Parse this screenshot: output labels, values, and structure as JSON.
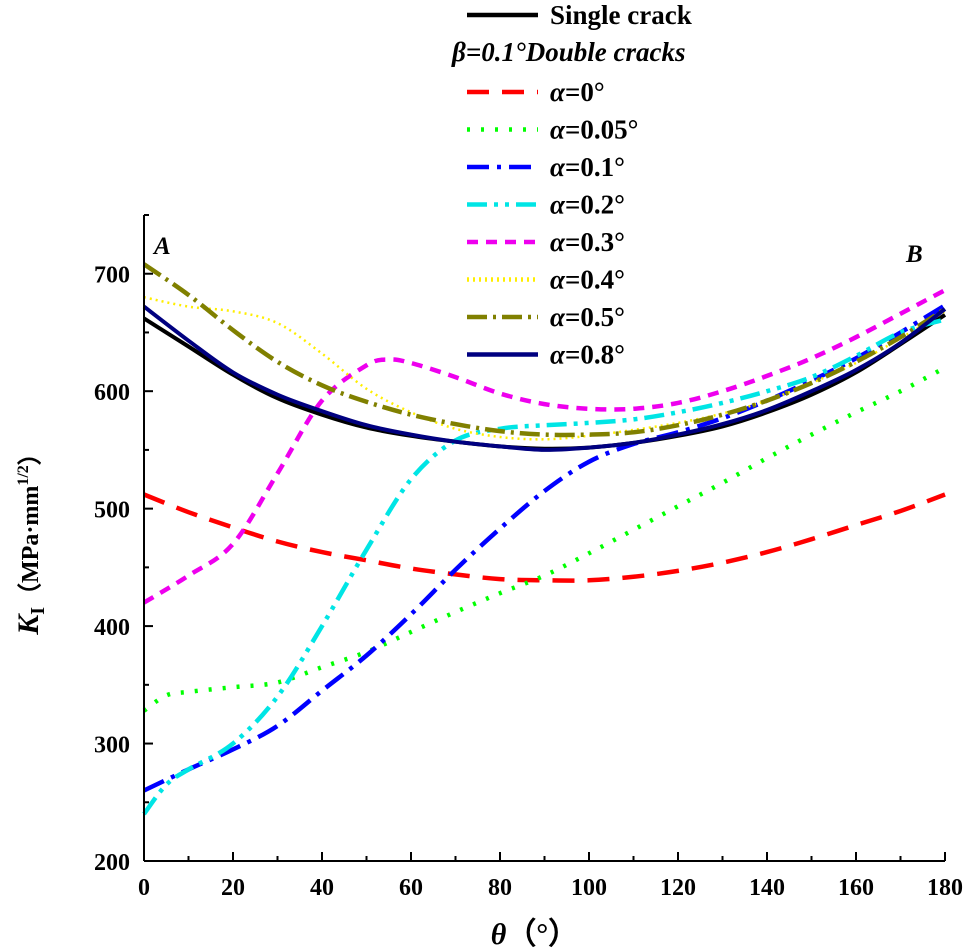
{
  "chart_data": {
    "type": "line",
    "xlabel_symbol": "θ",
    "xlabel_unit": "（°）",
    "ylabel_symbol": "K",
    "ylabel_subscript": "I",
    "ylabel_unit": "（MPa·mm",
    "ylabel_unit_sup": "1/2",
    "ylabel_unit_close": "）",
    "xlim": [
      0,
      180
    ],
    "ylim": [
      200,
      750
    ],
    "xticks": [
      0,
      20,
      40,
      60,
      80,
      100,
      120,
      140,
      160,
      180
    ],
    "yticks": [
      200,
      300,
      400,
      500,
      600,
      700
    ],
    "annotations": [
      {
        "text": "A",
        "at": "top-left"
      },
      {
        "text": "B",
        "at": "top-right"
      }
    ],
    "legend_header": "β=0.1°Double cracks",
    "legend_position": "top-right",
    "series": [
      {
        "name": "Single crack",
        "label": "Single crack",
        "color": "#000000",
        "dash": "solid",
        "x": [
          0,
          10,
          20,
          30,
          40,
          50,
          60,
          70,
          80,
          90,
          100,
          110,
          120,
          130,
          140,
          150,
          160,
          170,
          180
        ],
        "y": [
          662,
          638,
          614,
          594,
          580,
          569,
          562,
          557,
          553,
          551,
          552,
          556,
          562,
          570,
          582,
          597,
          616,
          640,
          665
        ]
      },
      {
        "name": "α=0°",
        "label": "=0°",
        "color": "#ff0000",
        "dash": "dash",
        "x": [
          0,
          10,
          20,
          30,
          40,
          50,
          60,
          70,
          80,
          90,
          100,
          110,
          120,
          130,
          140,
          150,
          160,
          170,
          180
        ],
        "y": [
          512,
          497,
          484,
          472,
          463,
          456,
          449,
          444,
          440,
          439,
          439,
          442,
          447,
          454,
          463,
          474,
          486,
          498,
          512
        ]
      },
      {
        "name": "α=0.05°",
        "label": "=0.05°",
        "color": "#00ff00",
        "dash": "dot",
        "x": [
          0,
          5,
          10,
          20,
          30,
          40,
          50,
          60,
          70,
          80,
          90,
          100,
          110,
          120,
          130,
          140,
          150,
          160,
          170,
          180
        ],
        "y": [
          328,
          341,
          344,
          348,
          352,
          365,
          378,
          395,
          412,
          428,
          443,
          462,
          482,
          502,
          522,
          543,
          563,
          582,
          600,
          620
        ]
      },
      {
        "name": "α=0.1°",
        "label": "=0.1°",
        "color": "#0000ff",
        "dash": "dashdot",
        "x": [
          0,
          10,
          20,
          30,
          40,
          50,
          60,
          70,
          80,
          90,
          100,
          110,
          120,
          130,
          140,
          150,
          160,
          170,
          180
        ],
        "y": [
          260,
          278,
          295,
          315,
          345,
          375,
          410,
          448,
          483,
          515,
          540,
          555,
          565,
          577,
          592,
          609,
          628,
          650,
          673
        ]
      },
      {
        "name": "α=0.2°",
        "label": "=0.2°",
        "color": "#00e5e5",
        "dash": "dashdotdot",
        "x": [
          0,
          5,
          10,
          20,
          30,
          40,
          50,
          60,
          70,
          80,
          90,
          100,
          110,
          120,
          130,
          140,
          150,
          160,
          170,
          180
        ],
        "y": [
          240,
          265,
          278,
          300,
          340,
          400,
          465,
          525,
          558,
          568,
          571,
          573,
          576,
          582,
          590,
          600,
          612,
          630,
          650,
          661
        ]
      },
      {
        "name": "α=0.3°",
        "label": "=0.3°",
        "color": "#ee00ee",
        "dash": "shortdash",
        "x": [
          0,
          10,
          20,
          30,
          40,
          50,
          55,
          60,
          70,
          80,
          90,
          100,
          110,
          120,
          130,
          140,
          150,
          160,
          170,
          180
        ],
        "y": [
          420,
          443,
          470,
          530,
          592,
          622,
          627,
          624,
          612,
          598,
          589,
          585,
          585,
          590,
          600,
          613,
          628,
          646,
          666,
          686
        ]
      },
      {
        "name": "α=0.4°",
        "label": "=0.4°",
        "color": "#ffee00",
        "dash": "finedot",
        "x": [
          0,
          10,
          20,
          30,
          40,
          50,
          60,
          70,
          80,
          90,
          100,
          110,
          120,
          130,
          140,
          150,
          160,
          170,
          180
        ],
        "y": [
          680,
          672,
          668,
          658,
          632,
          602,
          582,
          568,
          561,
          559,
          562,
          567,
          573,
          581,
          592,
          607,
          624,
          645,
          668
        ]
      },
      {
        "name": "α=0.5°",
        "label": "=0.5°",
        "color": "#808000",
        "dash": "dashdot2",
        "x": [
          0,
          10,
          20,
          30,
          40,
          50,
          60,
          70,
          80,
          90,
          100,
          110,
          120,
          130,
          140,
          150,
          160,
          170,
          180
        ],
        "y": [
          708,
          682,
          652,
          625,
          605,
          591,
          580,
          572,
          566,
          563,
          563,
          565,
          571,
          580,
          592,
          607,
          625,
          646,
          670
        ]
      },
      {
        "name": "α=0.8°",
        "label": "=0.8°",
        "color": "#000080",
        "dash": "solid",
        "x": [
          0,
          10,
          20,
          30,
          40,
          50,
          60,
          70,
          80,
          90,
          100,
          110,
          120,
          130,
          140,
          150,
          160,
          170,
          180
        ],
        "y": [
          672,
          643,
          616,
          597,
          583,
          571,
          563,
          557,
          553,
          550,
          552,
          556,
          563,
          572,
          584,
          600,
          618,
          641,
          670
        ]
      }
    ]
  }
}
